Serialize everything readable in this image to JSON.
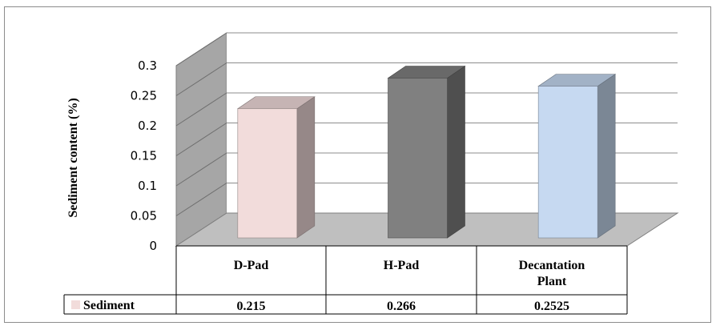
{
  "chart_data": {
    "type": "bar",
    "categories": [
      "D-Pad",
      "H-Pad",
      "Decantation Plant"
    ],
    "category_lines": [
      [
        "D-Pad"
      ],
      [
        "H-Pad"
      ],
      [
        "Decantation",
        "Plant"
      ]
    ],
    "series": [
      {
        "name": "Sediment",
        "values": [
          0.215,
          0.266,
          0.2525
        ],
        "value_labels": [
          "0.215",
          "0.266",
          "0.2525"
        ]
      }
    ],
    "bar_colors": [
      "#f2dcdb",
      "#808080",
      "#c6d9f1"
    ],
    "ylabel": "Sediment content (%)",
    "ylim": [
      0,
      0.3
    ],
    "yticks": [
      "0",
      "0.05",
      "0.1",
      "0.15",
      "0.2",
      "0.25",
      "0.3"
    ],
    "grid": true,
    "legend_placement": "data-table-left",
    "data_table": true
  }
}
